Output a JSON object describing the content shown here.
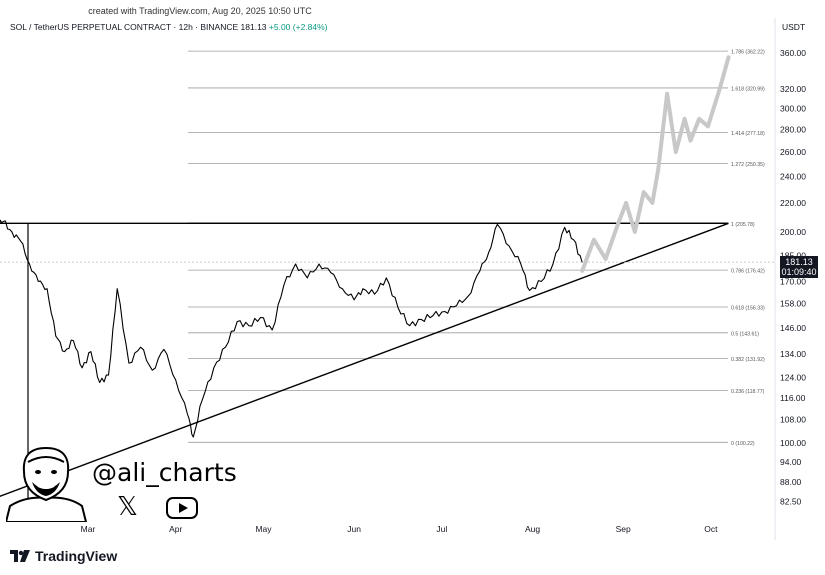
{
  "header": {
    "created_note": "created with TradingView.com, Aug 20, 2025 10:50 UTC",
    "symbol_line": "SOL / TetherUS PERPETUAL CONTRACT · 12h · BINANCE",
    "price": "181.13",
    "change": "+5.00 (+2.84%)",
    "currency": "USDT"
  },
  "price_label": {
    "price": "181.13",
    "countdown": "01:09:40"
  },
  "branding": {
    "handle": "@ali_charts",
    "x_icon": "x-logo-icon",
    "youtube_icon": "youtube-icon",
    "tradingview_logo": "TradingView"
  },
  "colors": {
    "price_line": "#000000",
    "projection": "#c8c8c8",
    "fib_line": "#9e9e9e",
    "price_box": "#131722"
  },
  "chart_data": {
    "type": "line",
    "title": "SOL / TetherUS PERPETUAL CONTRACT · 12h · BINANCE",
    "x_ticks": [
      "Mar",
      "Apr",
      "May",
      "Jun",
      "Jul",
      "Aug",
      "Sep",
      "Oct"
    ],
    "y_ticks": [
      "360.00",
      "320.00",
      "300.00",
      "280.00",
      "260.00",
      "240.00",
      "220.00",
      "200.00",
      "185.00",
      "170.00",
      "158.00",
      "146.00",
      "134.00",
      "124.00",
      "116.00",
      "108.00",
      "100.00",
      "94.00",
      "88.00",
      "82.50"
    ],
    "y_scale": "log",
    "fib_levels": [
      {
        "label": "1.786 (362.22)",
        "value": 362.22
      },
      {
        "label": "1.618 (320.99)",
        "value": 320.99
      },
      {
        "label": "1.414 (277.18)",
        "value": 277.18
      },
      {
        "label": "1.272 (250.35)",
        "value": 250.35
      },
      {
        "label": "1 (205.78)",
        "value": 205.78
      },
      {
        "label": "0.786 (176.42)",
        "value": 176.42
      },
      {
        "label": "0.618 (156.33)",
        "value": 156.33
      },
      {
        "label": "0.5 (143.61)",
        "value": 143.61
      },
      {
        "label": "0.382 (131.92)",
        "value": 131.92
      },
      {
        "label": "0.236 (118.77)",
        "value": 118.77
      },
      {
        "label": "0 (100.22)",
        "value": 100.22
      }
    ],
    "price_series": {
      "dates": [
        "2025-01-28",
        "2025-02-01",
        "2025-02-03",
        "2025-02-06",
        "2025-02-09",
        "2025-02-12",
        "2025-02-15",
        "2025-02-18",
        "2025-02-21",
        "2025-02-24",
        "2025-02-27",
        "2025-03-02",
        "2025-03-05",
        "2025-03-08",
        "2025-03-11",
        "2025-03-14",
        "2025-03-18",
        "2025-03-22",
        "2025-03-26",
        "2025-03-30",
        "2025-04-03",
        "2025-04-07",
        "2025-04-09",
        "2025-04-12",
        "2025-04-16",
        "2025-04-20",
        "2025-04-24",
        "2025-04-28",
        "2025-05-02",
        "2025-05-06",
        "2025-05-10",
        "2025-05-14",
        "2025-05-18",
        "2025-05-22",
        "2025-05-26",
        "2025-05-30",
        "2025-06-03",
        "2025-06-06",
        "2025-06-10",
        "2025-06-14",
        "2025-06-18",
        "2025-06-22",
        "2025-06-26",
        "2025-06-30",
        "2025-07-04",
        "2025-07-08",
        "2025-07-12",
        "2025-07-16",
        "2025-07-19",
        "2025-07-22",
        "2025-07-26",
        "2025-07-30",
        "2025-08-02",
        "2025-08-06",
        "2025-08-10",
        "2025-08-14",
        "2025-08-17",
        "2025-08-20"
      ],
      "values": [
        214,
        205,
        207,
        200,
        194,
        180,
        170,
        166,
        142,
        135,
        140,
        128,
        135,
        122,
        125,
        166,
        130,
        137,
        127,
        136,
        123,
        110,
        102,
        115,
        128,
        137,
        149,
        147,
        151,
        145,
        168,
        180,
        172,
        180,
        175,
        166,
        160,
        166,
        163,
        172,
        156,
        147,
        150,
        152,
        154,
        157,
        162,
        176,
        187,
        205,
        191,
        180,
        165,
        170,
        180,
        203,
        195,
        181
      ]
    },
    "projection_series": {
      "dates": [
        "2025-08-20",
        "2025-08-24",
        "2025-08-28",
        "2025-09-01",
        "2025-09-04",
        "2025-09-07",
        "2025-09-10",
        "2025-09-13",
        "2025-09-15",
        "2025-09-18",
        "2025-09-21",
        "2025-09-24",
        "2025-09-26",
        "2025-09-29",
        "2025-10-02",
        "2025-10-06",
        "2025-10-09"
      ],
      "values": [
        176,
        195,
        183,
        204,
        220,
        200,
        228,
        220,
        246,
        315,
        260,
        290,
        270,
        290,
        283,
        320,
        355
      ]
    },
    "trendlines": [
      {
        "name": "resistance",
        "from": {
          "date": "2025-01-28",
          "value": 205.78
        },
        "to": {
          "date": "2025-10-09",
          "value": 205.78
        }
      },
      {
        "name": "support",
        "from": {
          "date": "2025-01-28",
          "value": 82.5
        },
        "to": {
          "date": "2025-10-09",
          "value": 205.78
        }
      }
    ]
  }
}
